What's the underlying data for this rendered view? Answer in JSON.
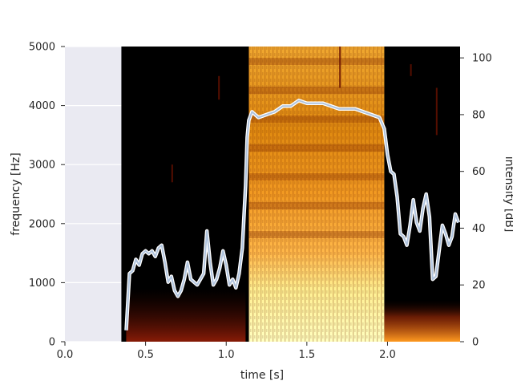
{
  "chart_data": {
    "type": "heatmap",
    "title": "",
    "xlabel": "time [s]",
    "ylabel_left": "frequency [Hz]",
    "ylabel_right": "intensity [dB]",
    "xlim": [
      0.0,
      2.45
    ],
    "ylim_left": [
      0,
      5000
    ],
    "ylim_right": [
      0,
      104
    ],
    "xticks": [
      "0.0",
      "0.5",
      "1.0",
      "1.5",
      "2.0"
    ],
    "xtick_values": [
      0.0,
      0.5,
      1.0,
      1.5,
      2.0
    ],
    "yticks_left": [
      "0",
      "1000",
      "2000",
      "3000",
      "4000",
      "5000"
    ],
    "ytick_values_left": [
      0,
      1000,
      2000,
      3000,
      4000,
      5000
    ],
    "yticks_right": [
      "0",
      "20",
      "40",
      "60",
      "80",
      "100"
    ],
    "ytick_values_right": [
      0,
      20,
      40,
      60,
      80,
      100
    ],
    "spectrogram_start": 0.35,
    "voiced_segment": [
      1.14,
      1.98
    ],
    "colormap": "afmhot",
    "series": [
      {
        "kind": "intensity-curve",
        "color": "#b0c4de",
        "x": [
          0.38,
          0.4,
          0.42,
          0.44,
          0.46,
          0.48,
          0.5,
          0.52,
          0.54,
          0.56,
          0.58,
          0.6,
          0.62,
          0.64,
          0.66,
          0.68,
          0.7,
          0.72,
          0.74,
          0.76,
          0.78,
          0.8,
          0.82,
          0.84,
          0.86,
          0.88,
          0.9,
          0.92,
          0.94,
          0.96,
          0.98,
          1.0,
          1.02,
          1.04,
          1.06,
          1.08,
          1.1,
          1.12,
          1.13,
          1.14,
          1.16,
          1.18,
          1.2,
          1.25,
          1.3,
          1.35,
          1.4,
          1.45,
          1.5,
          1.55,
          1.6,
          1.65,
          1.7,
          1.75,
          1.8,
          1.85,
          1.9,
          1.95,
          1.98,
          2.0,
          2.02,
          2.04,
          2.06,
          2.08,
          2.1,
          2.12,
          2.14,
          2.16,
          2.18,
          2.2,
          2.22,
          2.24,
          2.26,
          2.28,
          2.3,
          2.32,
          2.34,
          2.36,
          2.38,
          2.4,
          2.42,
          2.44
        ],
        "y": [
          4,
          24,
          25,
          29,
          27,
          31,
          32,
          31,
          32,
          30,
          33,
          34,
          28,
          21,
          23,
          18,
          16,
          18,
          22,
          28,
          22,
          21,
          20,
          22,
          24,
          39,
          28,
          20,
          22,
          26,
          32,
          27,
          20,
          22,
          19,
          24,
          33,
          55,
          72,
          78,
          81,
          80,
          79,
          80,
          81,
          83,
          83,
          85,
          84,
          84,
          84,
          83,
          82,
          82,
          82,
          81,
          80,
          79,
          75,
          66,
          60,
          59,
          51,
          38,
          37,
          34,
          41,
          50,
          42,
          39,
          47,
          52,
          44,
          22,
          23,
          32,
          41,
          38,
          34,
          37,
          45,
          42
        ]
      }
    ],
    "style": {
      "axes_face": "#eaeaf2",
      "grid": "#ffffff",
      "text": "#262626"
    }
  }
}
